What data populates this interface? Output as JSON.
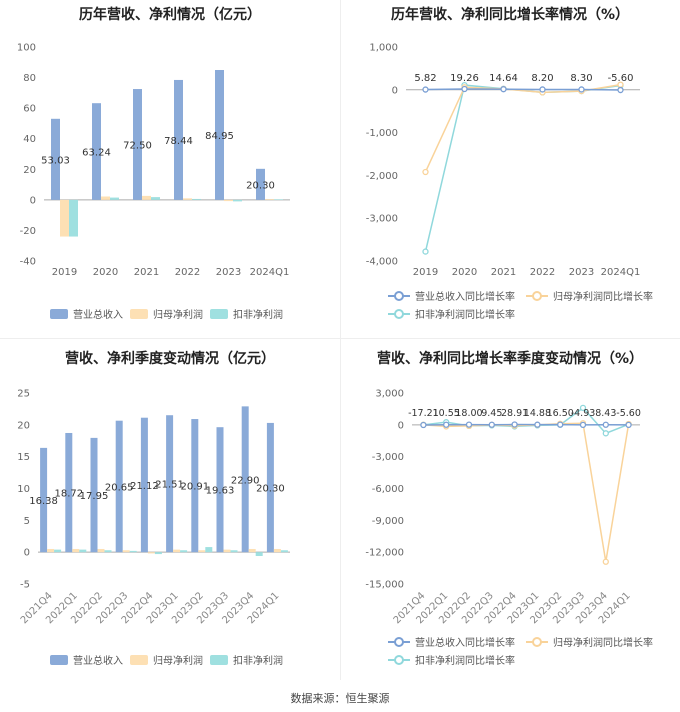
{
  "colors": {
    "revenue": "#8aaad8",
    "parent": "#fde0b4",
    "deducted": "#9fe0e0",
    "revenue_line": "#7a9fd4",
    "parent_line": "#f9d39a",
    "deducted_line": "#90d8dc"
  },
  "source": "数据来源：恒生聚源",
  "legend_bar": [
    "营业总收入",
    "归母净利润",
    "扣非净利润"
  ],
  "legend_line": [
    "营业总收入同比增长率",
    "归母净利润同比增长率",
    "扣非净利润同比增长率"
  ],
  "chart_data": [
    {
      "type": "bar",
      "title": "历年营收、净利情况（亿元）",
      "categories": [
        "2019",
        "2020",
        "2021",
        "2022",
        "2023",
        "2024Q1"
      ],
      "ylim": [
        -40,
        100
      ],
      "yticks": [
        -40,
        -20,
        0,
        20,
        40,
        60,
        80,
        100
      ],
      "series": [
        {
          "name": "营业总收入",
          "values": [
            53.03,
            63.24,
            72.5,
            78.44,
            84.95,
            20.3
          ]
        },
        {
          "name": "归母净利润",
          "values": [
            -24,
            2.2,
            2.6,
            1.0,
            -0.8,
            0.5
          ]
        },
        {
          "name": "扣非净利润",
          "values": [
            -24,
            1.5,
            1.8,
            0.6,
            -1.0,
            0.3
          ]
        }
      ],
      "data_labels": [
        "53.03",
        "63.24",
        "72.50",
        "78.44",
        "84.95",
        "20.30"
      ],
      "legend": "bottom",
      "grid": false
    },
    {
      "type": "line",
      "title": "历年营收、净利同比增长率情况（%）",
      "categories": [
        "2019",
        "2020",
        "2021",
        "2022",
        "2023",
        "2024Q1"
      ],
      "ylim": [
        -4000,
        1000
      ],
      "yticks": [
        -4000,
        -3000,
        -2000,
        -1000,
        0,
        1000
      ],
      "ytick_labels": [
        "-4,000",
        "-3,000",
        "-2,000",
        "-1,000",
        "0",
        "1,000"
      ],
      "series": [
        {
          "name": "营业总收入同比增长率",
          "values": [
            5.82,
            19.26,
            14.64,
            8.2,
            8.3,
            -5.6
          ]
        },
        {
          "name": "归母净利润同比增长率",
          "values": [
            -1920,
            60,
            20,
            -60,
            -30,
            120
          ]
        },
        {
          "name": "扣非净利润同比增长率",
          "values": [
            -3780,
            110,
            25,
            -60,
            -30,
            100
          ]
        }
      ],
      "data_labels": [
        "5.82",
        "19.26",
        "14.64",
        "8.20",
        "8.30",
        "-5.60"
      ],
      "legend": "bottom",
      "grid": false
    },
    {
      "type": "bar",
      "title": "营收、净利季度变动情况（亿元）",
      "categories": [
        "2021Q4",
        "2022Q1",
        "2022Q2",
        "2022Q3",
        "2022Q4",
        "2023Q1",
        "2023Q2",
        "2023Q3",
        "2023Q4",
        "2024Q1"
      ],
      "ylim": [
        -5,
        25
      ],
      "yticks": [
        -5,
        0,
        5,
        10,
        15,
        20,
        25
      ],
      "series": [
        {
          "name": "营业总收入",
          "values": [
            16.38,
            18.72,
            17.95,
            20.65,
            21.12,
            21.51,
            20.91,
            19.63,
            22.9,
            20.3
          ]
        },
        {
          "name": "归母净利润",
          "values": [
            0.5,
            0.5,
            0.5,
            0.3,
            -0.2,
            0.4,
            0.3,
            0.4,
            0.5,
            0.5
          ]
        },
        {
          "name": "扣非净利润",
          "values": [
            0.4,
            0.4,
            0.3,
            0.2,
            -0.3,
            0.3,
            0.8,
            0.3,
            -0.6,
            0.3
          ]
        }
      ],
      "data_labels": [
        "16.38",
        "18.72",
        "17.95",
        "20.65",
        "21.12",
        "21.51",
        "20.91",
        "19.63",
        "22.90",
        "20.30"
      ],
      "legend": "bottom",
      "grid": false
    },
    {
      "type": "line",
      "title": "营收、净利同比增长率季度变动情况（%）",
      "categories": [
        "2021Q4",
        "2022Q1",
        "2022Q2",
        "2022Q3",
        "2022Q4",
        "2023Q1",
        "2023Q2",
        "2023Q3",
        "2023Q4",
        "2024Q1"
      ],
      "ylim": [
        -15000,
        3000
      ],
      "yticks": [
        -15000,
        -12000,
        -9000,
        -6000,
        -3000,
        0,
        3000
      ],
      "ytick_labels": [
        "-15,000",
        "-12,000",
        "-9,000",
        "-6,000",
        "-3,000",
        "0",
        "3,000"
      ],
      "series": [
        {
          "name": "营业总收入同比增长率",
          "values": [
            -17.21,
            10.55,
            18.0,
            9.45,
            28.91,
            14.88,
            16.5,
            -4.93,
            8.43,
            -5.6
          ]
        },
        {
          "name": "归母净利润同比增长率",
          "values": [
            0,
            -150,
            -100,
            0,
            -80,
            0,
            100,
            150,
            -12900,
            80
          ]
        },
        {
          "name": "扣非净利润同比增长率",
          "values": [
            0,
            250,
            -100,
            -50,
            -150,
            -50,
            0,
            1600,
            -800,
            50
          ]
        }
      ],
      "data_labels": [
        "-17.21",
        "10.55",
        "18.00",
        "9.45",
        "28.91",
        "14.88",
        "16.50",
        "-4.93",
        "8.43",
        "-5.60"
      ],
      "legend": "bottom",
      "grid": false
    }
  ]
}
